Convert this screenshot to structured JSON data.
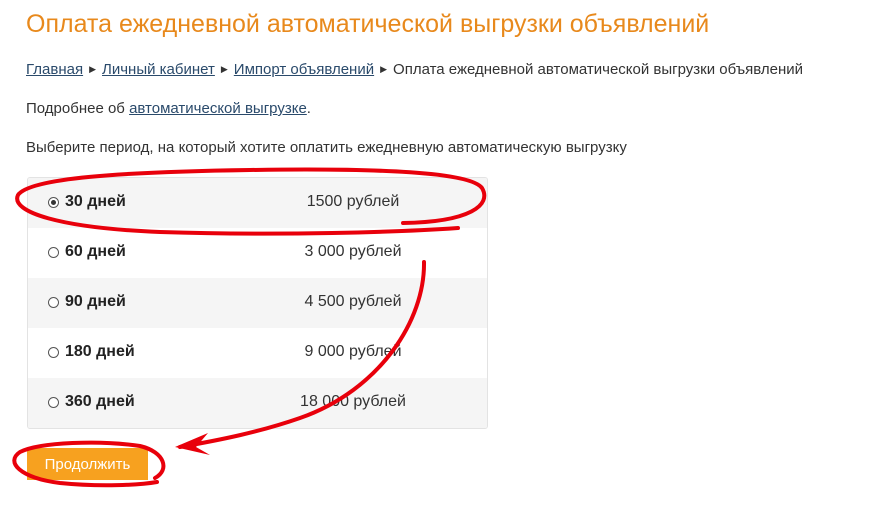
{
  "page": {
    "title": "Оплата ежедневной автоматической выгрузки объявлений"
  },
  "breadcrumb": {
    "items": [
      "Главная",
      "Личный кабинет",
      "Импорт объявлений"
    ],
    "current": "Оплата ежедневной автоматической выгрузки объявлений",
    "separator": "▶"
  },
  "info": {
    "prefix": "Подробнее об ",
    "link": "автоматической выгрузке",
    "suffix": "."
  },
  "instruction": "Выберите период, на который хотите оплатить ежедневную автоматическую выгрузку",
  "periods": [
    {
      "days": "30 дней",
      "price": "1500 рублей",
      "selected": true
    },
    {
      "days": "60 дней",
      "price": "3 000 рублей",
      "selected": false
    },
    {
      "days": "90 дней",
      "price": "4 500 рублей",
      "selected": false
    },
    {
      "days": "180 дней",
      "price": "9 000 рублей",
      "selected": false
    },
    {
      "days": "360 дней",
      "price": "18 000 рублей",
      "selected": false
    }
  ],
  "continue_label": "Продолжить",
  "colors": {
    "accent": "#e8891c",
    "button": "#f7a11f",
    "annotation": "#e8000b"
  }
}
